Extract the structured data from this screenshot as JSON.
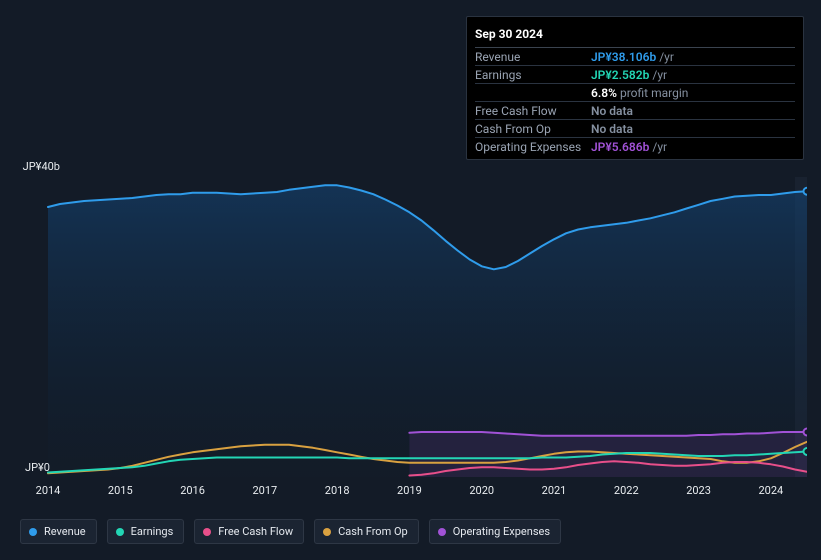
{
  "chart": {
    "type": "line",
    "background_color": "#131b27",
    "area_fill": "#0f2236",
    "grid_color": "#1f2a39",
    "x_years": [
      2014,
      2015,
      2016,
      2017,
      2018,
      2019,
      2020,
      2021,
      2022,
      2023,
      2024
    ],
    "y_ticks": [
      {
        "label": "JP¥40b",
        "value": 40
      },
      {
        "label": "JP¥0",
        "value": 0
      }
    ],
    "ylim": [
      0,
      40
    ],
    "label_fontsize": 11,
    "series": {
      "revenue": {
        "label": "Revenue",
        "color": "#2f9ceb",
        "stroke_width": 2,
        "marker_end": true,
        "values": [
          36,
          36.4,
          36.6,
          36.8,
          36.9,
          37,
          37.1,
          37.2,
          37.4,
          37.6,
          37.7,
          37.7,
          37.9,
          37.9,
          37.9,
          37.8,
          37.7,
          37.8,
          37.9,
          38.0,
          38.3,
          38.5,
          38.7,
          38.9,
          38.9,
          38.6,
          38.2,
          37.7,
          37.0,
          36.2,
          35.3,
          34.2,
          32.9,
          31.5,
          30.2,
          29.0,
          28.1,
          27.7,
          28.0,
          28.8,
          29.8,
          30.8,
          31.7,
          32.5,
          33.0,
          33.3,
          33.5,
          33.7,
          33.9,
          34.2,
          34.5,
          34.9,
          35.3,
          35.8,
          36.3,
          36.8,
          37.1,
          37.4,
          37.5,
          37.6,
          37.6,
          37.8,
          38.0,
          38.1
        ]
      },
      "earnings": {
        "label": "Earnings",
        "color": "#23d6b5",
        "stroke_width": 2,
        "marker_end": true,
        "values": [
          0.6,
          0.7,
          0.8,
          0.9,
          1.0,
          1.1,
          1.2,
          1.3,
          1.5,
          1.8,
          2.1,
          2.3,
          2.4,
          2.5,
          2.6,
          2.6,
          2.6,
          2.6,
          2.6,
          2.6,
          2.6,
          2.6,
          2.6,
          2.6,
          2.6,
          2.5,
          2.5,
          2.5,
          2.5,
          2.5,
          2.5,
          2.5,
          2.5,
          2.5,
          2.5,
          2.5,
          2.5,
          2.5,
          2.5,
          2.5,
          2.5,
          2.6,
          2.6,
          2.6,
          2.7,
          2.8,
          3.0,
          3.1,
          3.2,
          3.2,
          3.2,
          3.1,
          3.0,
          2.9,
          2.8,
          2.8,
          2.8,
          2.9,
          2.9,
          3.0,
          3.1,
          3.2,
          3.3,
          3.4
        ]
      },
      "free_cash_flow": {
        "label": "Free Cash Flow",
        "color": "#e84f8a",
        "stroke_width": 2,
        "marker_end": false,
        "start_index": 30,
        "values": [
          0.2,
          0.3,
          0.5,
          0.8,
          1.0,
          1.2,
          1.3,
          1.3,
          1.2,
          1.1,
          1.0,
          1.0,
          1.1,
          1.3,
          1.6,
          1.8,
          2.0,
          2.1,
          2.0,
          1.9,
          1.7,
          1.6,
          1.5,
          1.5,
          1.6,
          1.7,
          1.9,
          2.0,
          2.0,
          1.9,
          1.7,
          1.4,
          1.0,
          0.7
        ]
      },
      "cash_from_op": {
        "label": "Cash From Op",
        "color": "#d9a140",
        "stroke_width": 2,
        "marker_end": false,
        "values": [
          0.5,
          0.6,
          0.7,
          0.8,
          0.9,
          1.0,
          1.2,
          1.5,
          1.9,
          2.3,
          2.7,
          3.0,
          3.3,
          3.5,
          3.7,
          3.9,
          4.1,
          4.2,
          4.3,
          4.3,
          4.3,
          4.1,
          3.9,
          3.6,
          3.3,
          3.0,
          2.7,
          2.4,
          2.2,
          2.0,
          1.9,
          1.9,
          1.9,
          1.9,
          1.9,
          1.9,
          1.9,
          1.9,
          2.0,
          2.2,
          2.5,
          2.8,
          3.1,
          3.3,
          3.4,
          3.4,
          3.3,
          3.2,
          3.1,
          3.0,
          2.9,
          2.8,
          2.7,
          2.6,
          2.5,
          2.4,
          2.1,
          1.9,
          1.9,
          2.1,
          2.5,
          3.2,
          4.0,
          4.7
        ]
      },
      "operating_expenses": {
        "label": "Operating Expenses",
        "color": "#a152d6",
        "stroke_width": 2,
        "marker_end": true,
        "start_index": 30,
        "fill_under": true,
        "values": [
          5.9,
          6.0,
          6.0,
          6.0,
          6.0,
          6.0,
          6.0,
          5.9,
          5.8,
          5.7,
          5.6,
          5.5,
          5.5,
          5.5,
          5.5,
          5.5,
          5.5,
          5.5,
          5.5,
          5.5,
          5.5,
          5.5,
          5.5,
          5.5,
          5.6,
          5.6,
          5.7,
          5.7,
          5.8,
          5.8,
          5.9,
          6.0,
          6.0,
          6.0
        ]
      }
    },
    "forecast_start_index": 62,
    "n_points": 64
  },
  "tooltip": {
    "date": "Sep 30 2024",
    "rows": [
      {
        "label": "Revenue",
        "value": "JP¥38.106b",
        "color": "#2f9ceb",
        "suffix": "/yr"
      },
      {
        "label": "Earnings",
        "value": "JP¥2.582b",
        "color": "#23d6b5",
        "suffix": "/yr"
      },
      {
        "label": "",
        "value": "6.8%",
        "color": "#ffffff",
        "suffix": "profit margin"
      },
      {
        "label": "Free Cash Flow",
        "value": "No data",
        "color": "#8590a0",
        "suffix": ""
      },
      {
        "label": "Cash From Op",
        "value": "No data",
        "color": "#8590a0",
        "suffix": ""
      },
      {
        "label": "Operating Expenses",
        "value": "JP¥5.686b",
        "color": "#a152d6",
        "suffix": "/yr"
      }
    ]
  },
  "legend": {
    "bg": "#1b2432",
    "border": "#2e3745",
    "items": [
      {
        "label": "Revenue",
        "color": "#2f9ceb"
      },
      {
        "label": "Earnings",
        "color": "#23d6b5"
      },
      {
        "label": "Free Cash Flow",
        "color": "#e84f8a"
      },
      {
        "label": "Cash From Op",
        "color": "#d9a140"
      },
      {
        "label": "Operating Expenses",
        "color": "#a152d6"
      }
    ]
  }
}
